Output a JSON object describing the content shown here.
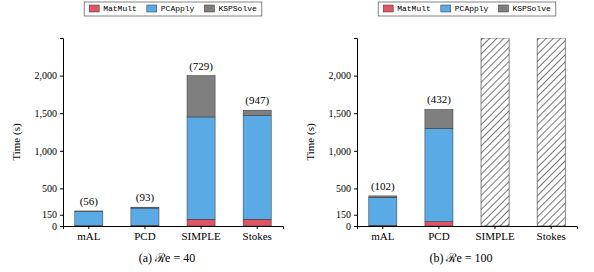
{
  "chart_data": [
    {
      "type": "bar",
      "stacked": true,
      "title": "(a) ℛe = 40",
      "y_label": "Time (s)",
      "legend": "top",
      "categories": [
        "mAL",
        "PCD",
        "SIMPLE",
        "Stokes"
      ],
      "series": [
        {
          "name": "MatMult",
          "color": "#e05563",
          "values": [
            5,
            8,
            90,
            90
          ]
        },
        {
          "name": "PCApply",
          "color": "#5aaae6",
          "values": [
            185,
            230,
            1360,
            1380
          ]
        },
        {
          "name": "KSPSolve",
          "color": "#7f7f7f",
          "values": [
            10,
            12,
            550,
            70
          ]
        }
      ],
      "annotations": [
        "(56)",
        "(93)",
        "(729)",
        "(947)"
      ],
      "ylim": [
        0,
        2500
      ],
      "yticks": [
        0,
        150,
        500,
        {
          "value": 1000,
          "label": "1,000"
        },
        {
          "value": 1500,
          "label": "1,500"
        },
        {
          "value": 2000,
          "label": "2,000"
        }
      ]
    },
    {
      "type": "bar",
      "stacked": true,
      "title": "(b) ℛe = 100",
      "y_label": "Time (s)",
      "legend": "top",
      "categories": [
        "mAL",
        "PCD",
        "SIMPLE",
        "Stokes"
      ],
      "series": [
        {
          "name": "MatMult",
          "color": "#e05563",
          "values": [
            10,
            60,
            null,
            null
          ]
        },
        {
          "name": "PCApply",
          "color": "#5aaae6",
          "values": [
            370,
            1240,
            null,
            null
          ]
        },
        {
          "name": "KSPSolve",
          "color": "#7f7f7f",
          "values": [
            20,
            250,
            null,
            null
          ]
        }
      ],
      "annotations": [
        "(102)",
        "(432)",
        null,
        null
      ],
      "ylim": [
        0,
        2500
      ],
      "yticks": [
        0,
        150,
        500,
        {
          "value": 1000,
          "label": "1,000"
        },
        {
          "value": 1500,
          "label": "1,500"
        },
        {
          "value": 2000,
          "label": "2,000"
        }
      ]
    }
  ]
}
